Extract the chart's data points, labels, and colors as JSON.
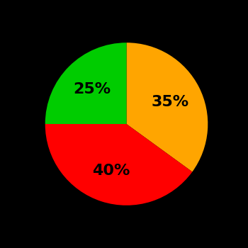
{
  "slices": [
    35,
    40,
    25
  ],
  "colors": [
    "#FFA500",
    "#FF0000",
    "#00CC00"
  ],
  "labels": [
    "35%",
    "40%",
    "25%"
  ],
  "background_color": "#000000",
  "label_fontsize": 16,
  "label_fontweight": "bold",
  "startangle": 90,
  "wedge_edge_color": "none",
  "figsize": [
    3.5,
    3.5
  ],
  "dpi": 100
}
